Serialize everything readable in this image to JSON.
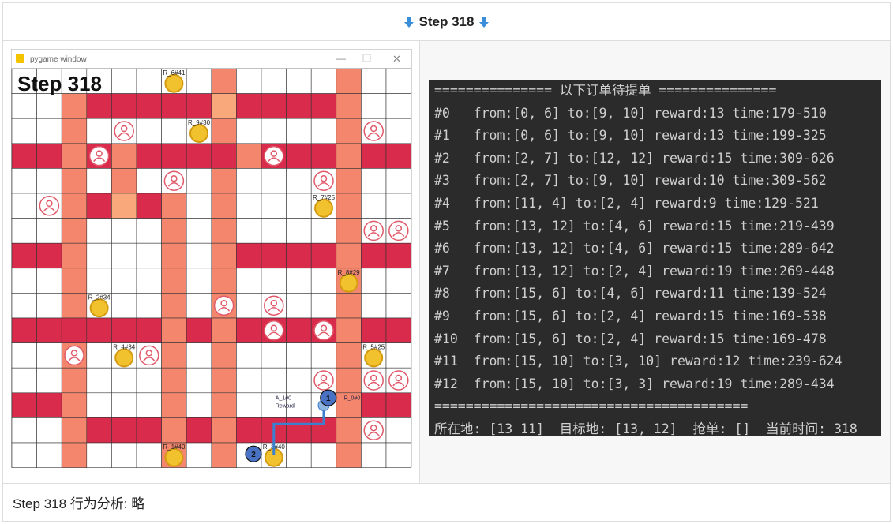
{
  "header": {
    "title": "Step 318"
  },
  "game_window": {
    "window_title": "pygame window",
    "step_label": "Step 318",
    "riders": [
      "R_6#41",
      "R_9#30",
      "R_7#25",
      "R_8#29",
      "R_2#34",
      "R_4#34",
      "R_5#25",
      "R_1#40",
      "R_3#40"
    ],
    "markers": [
      "1",
      "2"
    ],
    "agent_labels": [
      "A_1#0",
      "Reward",
      "R_0#0"
    ]
  },
  "terminal": {
    "header": "=============== 以下订单待提单 ===============",
    "orders": [
      "#0   from:[0, 6] to:[9, 10] reward:13 time:179-510",
      "#1   from:[0, 6] to:[9, 10] reward:13 time:199-325",
      "#2   from:[2, 7] to:[12, 12] reward:15 time:309-626",
      "#3   from:[2, 7] to:[9, 10] reward:10 time:309-562",
      "#4   from:[11, 4] to:[2, 4] reward:9 time:129-521",
      "#5   from:[13, 12] to:[4, 6] reward:15 time:219-439",
      "#6   from:[13, 12] to:[4, 6] reward:15 time:289-642",
      "#7   from:[13, 12] to:[2, 4] reward:19 time:269-448",
      "#8   from:[15, 6] to:[4, 6] reward:11 time:139-524",
      "#9   from:[15, 6] to:[2, 4] reward:15 time:169-538",
      "#10  from:[15, 6] to:[2, 4] reward:15 time:169-478",
      "#11  from:[15, 10] to:[3, 10] reward:12 time:239-624",
      "#12  from:[15, 10] to:[3, 3] reward:19 time:289-434"
    ],
    "separator": "========================================",
    "status": "所在地: [13 11]  目标地: [13, 12]  抢单: []  当前时间: 318"
  },
  "footer": {
    "text": "Step 318 行为分析:  略"
  }
}
